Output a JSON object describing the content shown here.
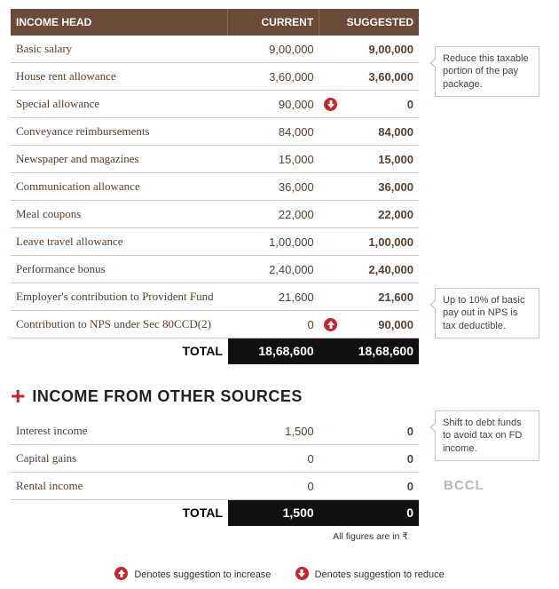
{
  "table1": {
    "headers": {
      "h1": "INCOME HEAD",
      "h2": "CURRENT",
      "h3": "SUGGESTED"
    },
    "rows": [
      {
        "label": "Basic salary",
        "current": "9,00,000",
        "icon": "",
        "suggested": "9,00,000"
      },
      {
        "label": "House rent allowance",
        "current": "3,60,000",
        "icon": "",
        "suggested": "3,60,000"
      },
      {
        "label": "Special allowance",
        "current": "90,000",
        "icon": "down",
        "suggested": "0"
      },
      {
        "label": "Conveyance reimbursements",
        "current": "84,000",
        "icon": "",
        "suggested": "84,000"
      },
      {
        "label": "Newspaper and magazines",
        "current": "15,000",
        "icon": "",
        "suggested": "15,000"
      },
      {
        "label": "Communication allowance",
        "current": "36,000",
        "icon": "",
        "suggested": "36,000"
      },
      {
        "label": "Meal coupons",
        "current": "22,000",
        "icon": "",
        "suggested": "22,000"
      },
      {
        "label": "Leave travel allowance",
        "current": "1,00,000",
        "icon": "",
        "suggested": "1,00,000"
      },
      {
        "label": "Performance bonus",
        "current": "2,40,000",
        "icon": "",
        "suggested": "2,40,000"
      },
      {
        "label": "Employer's contribution to Provident Fund",
        "current": "21,600",
        "icon": "",
        "suggested": "21,600"
      },
      {
        "label": "Contribution to NPS under Sec 80CCD(2)",
        "current": "0",
        "icon": "up",
        "suggested": "90,000"
      }
    ],
    "total": {
      "label": "TOTAL",
      "current": "18,68,600",
      "suggested": "18,68,600"
    }
  },
  "section2": {
    "plus": "+",
    "title": "INCOME FROM OTHER SOURCES"
  },
  "table2": {
    "rows": [
      {
        "label": "Interest income",
        "current": "1,500",
        "suggested": "0"
      },
      {
        "label": "Capital gains",
        "current": "0",
        "suggested": "0"
      },
      {
        "label": "Rental income",
        "current": "0",
        "suggested": "0"
      }
    ],
    "total": {
      "label": "TOTAL",
      "current": "1,500",
      "suggested": "0"
    }
  },
  "callouts": {
    "c1": "Reduce this taxable portion of the pay package.",
    "c2": "Up to 10% of basic pay out in NPS is tax deductible.",
    "c3": "Shift to debt funds to avoid tax on FD income."
  },
  "watermark": "BCCL",
  "footnote": "All figures are in ₹",
  "legend": {
    "up": "Denotes suggestion to increase",
    "down": "Denotes suggestion to reduce"
  },
  "colors": {
    "header_bg": "#6b4a3a",
    "accent": "#c1272d",
    "total_bg": "#111111"
  }
}
